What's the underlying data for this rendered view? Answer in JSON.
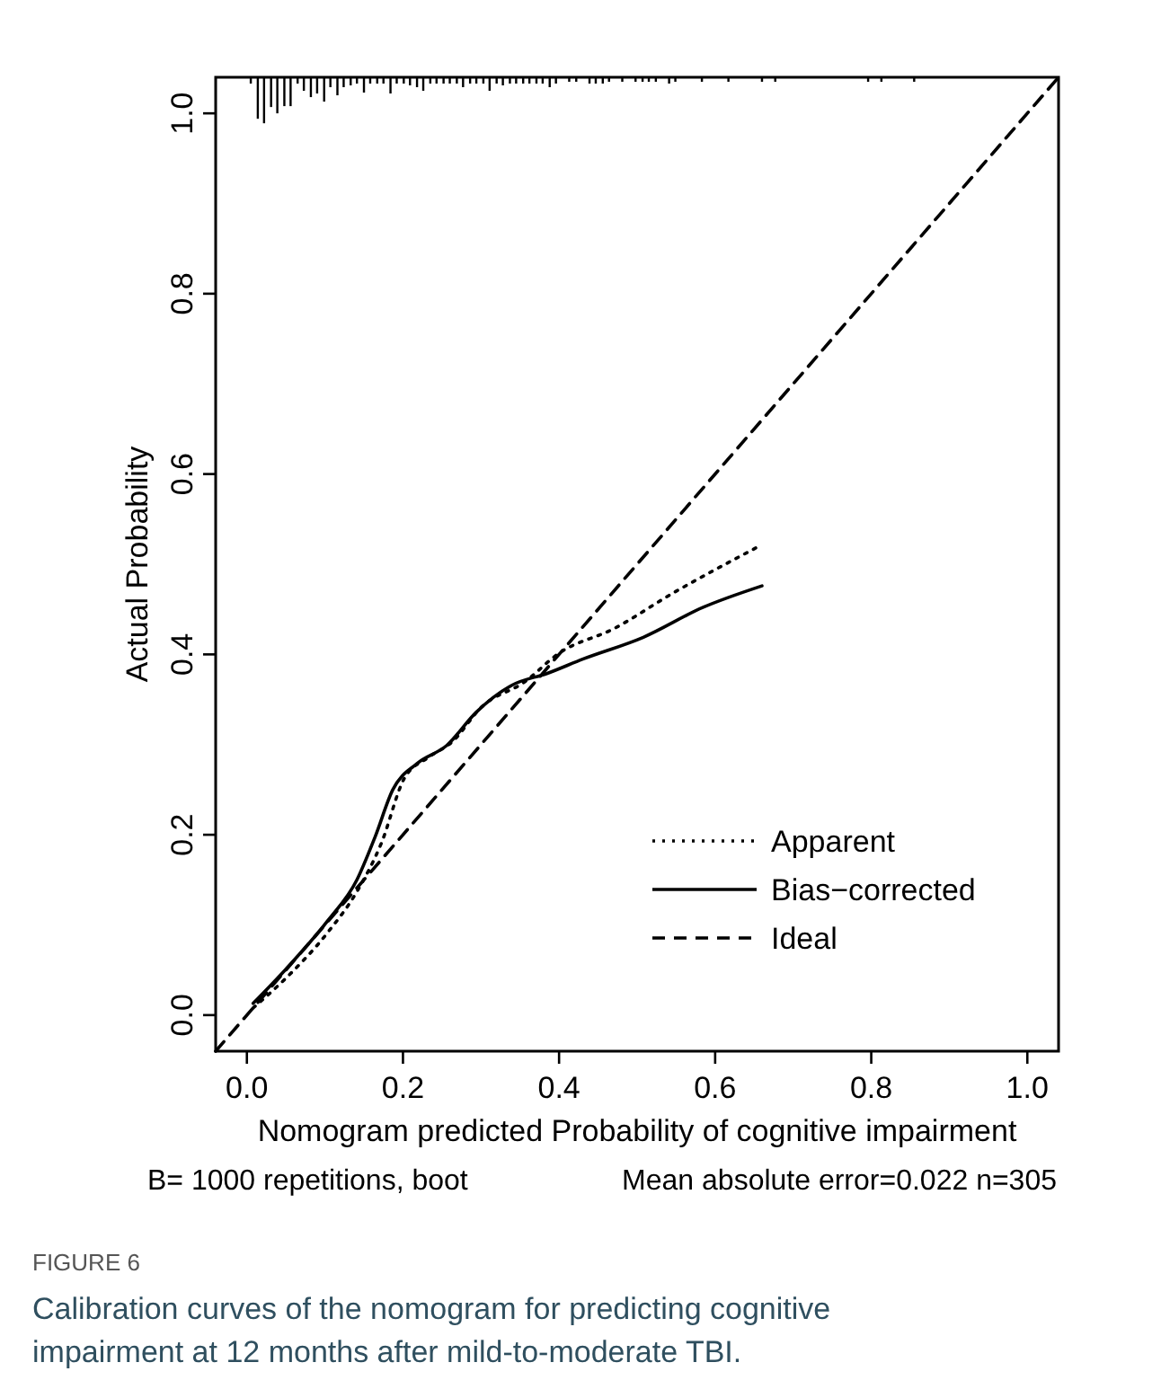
{
  "chart_data": {
    "type": "line",
    "xlabel": "Nomogram predicted Probability of cognitive impairment",
    "ylabel": "Actual Probability",
    "xlim": [
      -0.04,
      1.04
    ],
    "ylim": [
      -0.04,
      1.04
    ],
    "xticks": [
      {
        "value": 0,
        "label": "0.0"
      },
      0.2,
      0.4,
      0.6,
      0.8,
      {
        "value": 1,
        "label": "1.0"
      }
    ],
    "yticks": [
      {
        "value": 0,
        "label": "0.0"
      },
      0.2,
      0.4,
      0.6,
      0.8,
      {
        "value": 1,
        "label": "1.0"
      }
    ],
    "grid": false,
    "legend": "bottom right",
    "series": [
      {
        "name": "Apparent",
        "color": "#000000",
        "line_style": "dotted",
        "x": [
          0.008,
          0.05,
          0.103,
          0.141,
          0.172,
          0.202,
          0.233,
          0.263,
          0.301,
          0.355,
          0.401,
          0.469,
          0.546,
          0.652
        ],
        "values": [
          0.008,
          0.041,
          0.091,
          0.137,
          0.19,
          0.263,
          0.286,
          0.303,
          0.342,
          0.369,
          0.402,
          0.428,
          0.468,
          0.518
        ]
      },
      {
        "name": "Bias−corrected",
        "color": "#000000",
        "line_style": "solid",
        "x": [
          0.008,
          0.05,
          0.103,
          0.141,
          0.164,
          0.187,
          0.218,
          0.256,
          0.294,
          0.34,
          0.385,
          0.431,
          0.508,
          0.584,
          0.66
        ],
        "values": [
          0.013,
          0.051,
          0.104,
          0.15,
          0.197,
          0.25,
          0.279,
          0.299,
          0.336,
          0.366,
          0.379,
          0.395,
          0.419,
          0.452,
          0.476
        ]
      },
      {
        "name": "Ideal",
        "color": "#000000",
        "line_style": "dashed",
        "x": [
          -0.04,
          1.04
        ],
        "values": [
          -0.04,
          1.04
        ]
      },
      {
        "type": "bar",
        "color": "#000000",
        "x": [
          0.005,
          0.014,
          0.022,
          0.031,
          0.039,
          0.048,
          0.056,
          0.065,
          0.073,
          0.082,
          0.09,
          0.099,
          0.107,
          0.116,
          0.124,
          0.133,
          0.141,
          0.15,
          0.158,
          0.167,
          0.175,
          0.184,
          0.192,
          0.201,
          0.209,
          0.218,
          0.226,
          0.235,
          0.243,
          0.252,
          0.26,
          0.269,
          0.277,
          0.286,
          0.294,
          0.303,
          0.311,
          0.32,
          0.328,
          0.337,
          0.345,
          0.354,
          0.362,
          0.371,
          0.379,
          0.388,
          0.396,
          0.413,
          0.422,
          0.439,
          0.447,
          0.456,
          0.464,
          0.481,
          0.498,
          0.507,
          0.515,
          0.524,
          0.541,
          0.549,
          0.583,
          0.617,
          0.66,
          0.677,
          0.796,
          0.813,
          0.855
        ],
        "values": [
          -0.007,
          -0.046,
          -0.051,
          -0.033,
          -0.04,
          -0.032,
          -0.032,
          -0.007,
          -0.015,
          -0.022,
          -0.018,
          -0.027,
          -0.011,
          -0.02,
          -0.011,
          -0.009,
          -0.007,
          -0.017,
          -0.007,
          -0.007,
          -0.007,
          -0.018,
          -0.007,
          -0.007,
          -0.009,
          -0.011,
          -0.015,
          -0.007,
          -0.007,
          -0.007,
          -0.007,
          -0.007,
          -0.011,
          -0.007,
          -0.007,
          -0.007,
          -0.015,
          -0.007,
          -0.009,
          -0.007,
          -0.007,
          -0.007,
          -0.007,
          -0.007,
          -0.007,
          -0.011,
          -0.007,
          -0.005,
          -0.005,
          -0.007,
          -0.007,
          -0.007,
          -0.005,
          -0.005,
          -0.005,
          -0.005,
          -0.005,
          -0.005,
          -0.007,
          -0.005,
          -0.005,
          -0.005,
          -0.005,
          -0.005,
          -0.005,
          -0.005,
          -0.005
        ],
        "base": [
          1.04,
          1.04,
          1.04,
          1.04,
          1.04,
          1.04,
          1.04,
          1.04,
          1.04,
          1.04,
          1.04,
          1.04,
          1.04,
          1.04,
          1.04,
          1.04,
          1.04,
          1.04,
          1.04,
          1.04,
          1.04,
          1.04,
          1.04,
          1.04,
          1.04,
          1.04,
          1.04,
          1.04,
          1.04,
          1.04,
          1.04,
          1.04,
          1.04,
          1.04,
          1.04,
          1.04,
          1.04,
          1.04,
          1.04,
          1.04,
          1.04,
          1.04,
          1.04,
          1.04,
          1.04,
          1.04,
          1.04,
          1.04,
          1.04,
          1.04,
          1.04,
          1.04,
          1.04,
          1.04,
          1.04,
          1.04,
          1.04,
          1.04,
          1.04,
          1.04,
          1.04,
          1.04,
          1.04,
          1.04,
          1.04,
          1.04,
          1.04
        ]
      }
    ],
    "annotations": [
      "B= 1000 repetitions, boot",
      "Mean absolute error=0.022 n=305",
      "FIGURE 6",
      "Calibration curves of the nomogram for predicting cognitive impairment at 12 months after mild-to-moderate TBI."
    ]
  }
}
